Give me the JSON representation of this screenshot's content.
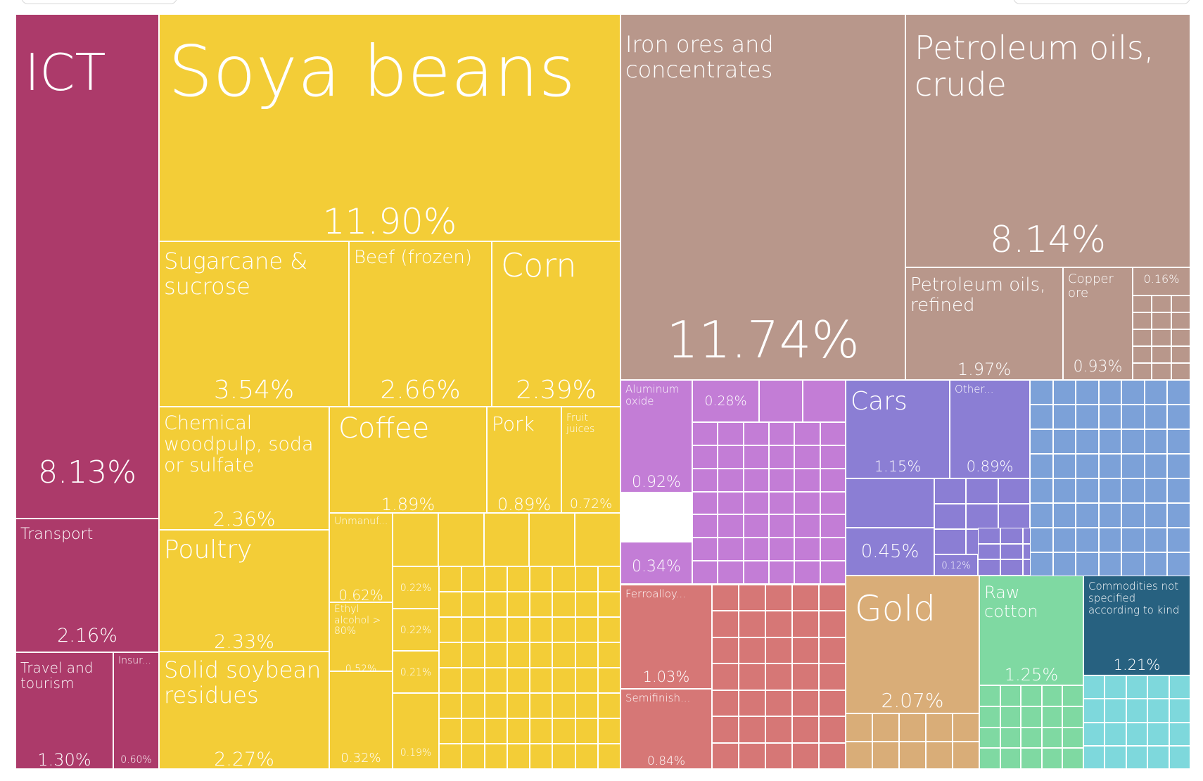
{
  "colors": {
    "services": "#ac3a6a",
    "vegetable": "#f3cd37",
    "minerals": "#b8978b",
    "chemicals": "#c37dd6",
    "transport": "#8b7ed4",
    "machinery": "#7ca1d8",
    "metals": "#d67776",
    "precious": "#d9ad78",
    "textiles": "#7fd9a2",
    "other": "#276180",
    "misc": "#7ed8dc"
  },
  "chart_data": {
    "type": "treemap",
    "title": "",
    "unit": "%",
    "items": [
      {
        "label": "ICT",
        "value": 8.13,
        "value_label": "8.13%",
        "group": "services"
      },
      {
        "label": "Transport",
        "value": 2.16,
        "value_label": "2.16%",
        "group": "services"
      },
      {
        "label": "Travel and tourism",
        "value": 1.3,
        "value_label": "1.30%",
        "group": "services"
      },
      {
        "label": "Insur...",
        "value": 0.6,
        "value_label": "0.60%",
        "group": "services"
      },
      {
        "label": "Soya beans",
        "value": 11.9,
        "value_label": "11.90%",
        "group": "vegetable"
      },
      {
        "label": "Sugarcane & sucrose",
        "value": 3.54,
        "value_label": "3.54%",
        "group": "vegetable"
      },
      {
        "label": "Beef (frozen)",
        "value": 2.66,
        "value_label": "2.66%",
        "group": "vegetable"
      },
      {
        "label": "Corn",
        "value": 2.39,
        "value_label": "2.39%",
        "group": "vegetable"
      },
      {
        "label": "Chemical woodpulp, soda or sulfate",
        "value": 2.36,
        "value_label": "2.36%",
        "group": "vegetable"
      },
      {
        "label": "Coffee",
        "value": 1.89,
        "value_label": "1.89%",
        "group": "vegetable"
      },
      {
        "label": "Pork",
        "value": 0.89,
        "value_label": "0.89%",
        "group": "vegetable"
      },
      {
        "label": "Fruit juices",
        "value": 0.72,
        "value_label": "0.72%",
        "group": "vegetable"
      },
      {
        "label": "Poultry",
        "value": 2.33,
        "value_label": "2.33%",
        "group": "vegetable"
      },
      {
        "label": "Solid soybean residues",
        "value": 2.27,
        "value_label": "2.27%",
        "group": "vegetable"
      },
      {
        "label": "Unmanuf...",
        "value": 0.62,
        "value_label": "0.62%",
        "group": "vegetable"
      },
      {
        "label": "Ethyl alcohol > 80%",
        "value": 0.52,
        "value_label": "0.52%",
        "group": "vegetable"
      },
      {
        "label": "",
        "value": 0.32,
        "value_label": "0.32%",
        "group": "vegetable"
      },
      {
        "label": "",
        "value": 0.22,
        "value_label": "0.22%",
        "group": "vegetable"
      },
      {
        "label": "",
        "value": 0.22,
        "value_label": "0.22%",
        "group": "vegetable"
      },
      {
        "label": "",
        "value": 0.21,
        "value_label": "0.21%",
        "group": "vegetable"
      },
      {
        "label": "",
        "value": 0.19,
        "value_label": "0.19%",
        "group": "vegetable"
      },
      {
        "label": "Iron ores and concentrates",
        "value": 11.74,
        "value_label": "11.74%",
        "group": "minerals"
      },
      {
        "label": "Petroleum oils, crude",
        "value": 8.14,
        "value_label": "8.14%",
        "group": "minerals"
      },
      {
        "label": "Petroleum oils, refined",
        "value": 1.97,
        "value_label": "1.97%",
        "group": "minerals"
      },
      {
        "label": "Copper ore",
        "value": 0.93,
        "value_label": "0.93%",
        "group": "minerals"
      },
      {
        "label": "",
        "value": 0.16,
        "value_label": "0.16%",
        "group": "minerals"
      },
      {
        "label": "Aluminum oxide",
        "value": 0.92,
        "value_label": "0.92%",
        "group": "chemicals"
      },
      {
        "label": "",
        "value": 0.34,
        "value_label": "0.34%",
        "group": "chemicals"
      },
      {
        "label": "",
        "value": 0.28,
        "value_label": "0.28%",
        "group": "chemicals"
      },
      {
        "label": "Cars",
        "value": 1.15,
        "value_label": "1.15%",
        "group": "transport"
      },
      {
        "label": "Other...",
        "value": 0.89,
        "value_label": "0.89%",
        "group": "transport"
      },
      {
        "label": "",
        "value": 0.45,
        "value_label": "0.45%",
        "group": "transport"
      },
      {
        "label": "",
        "value": 0.12,
        "value_label": "0.12%",
        "group": "transport"
      },
      {
        "label": "Ferroalloy...",
        "value": 1.03,
        "value_label": "1.03%",
        "group": "metals"
      },
      {
        "label": "Semifinish...",
        "value": 0.84,
        "value_label": "0.84%",
        "group": "metals"
      },
      {
        "label": "Gold",
        "value": 2.07,
        "value_label": "2.07%",
        "group": "precious"
      },
      {
        "label": "Raw cotton",
        "value": 1.25,
        "value_label": "1.25%",
        "group": "textiles"
      },
      {
        "label": "Commodities not specified according to kind",
        "value": 1.21,
        "value_label": "1.21%",
        "group": "other"
      }
    ]
  }
}
